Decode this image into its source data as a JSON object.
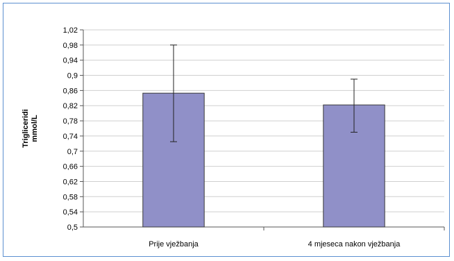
{
  "chart_data": {
    "type": "bar",
    "categories": [
      "Prije vježbanja",
      "4 mjeseca nakon vježbanja"
    ],
    "values": [
      0.853,
      0.822
    ],
    "error_bars": [
      {
        "low": 0.725,
        "high": 0.98
      },
      {
        "low": 0.75,
        "high": 0.89
      }
    ],
    "ylabel_lines": [
      "Trigliceridi",
      "mmol/L"
    ],
    "ylim": [
      0.5,
      1.02
    ],
    "yticks": [
      "0,5",
      "0,54",
      "0,58",
      "0,62",
      "0,66",
      "0,7",
      "0,74",
      "0,78",
      "0,82",
      "0,86",
      "0,9",
      "0,94",
      "0,98",
      "1,02"
    ],
    "ytick_values": [
      0.5,
      0.54,
      0.58,
      0.62,
      0.66,
      0.7,
      0.74,
      0.78,
      0.82,
      0.86,
      0.9,
      0.94,
      0.98,
      1.02
    ],
    "grid": true,
    "legend": "none",
    "colors": {
      "bar_fill": "#9090c8",
      "bar_stroke": "#3a3a3a",
      "grid": "#cfcfcf",
      "frame": "#5b8fd0"
    }
  }
}
